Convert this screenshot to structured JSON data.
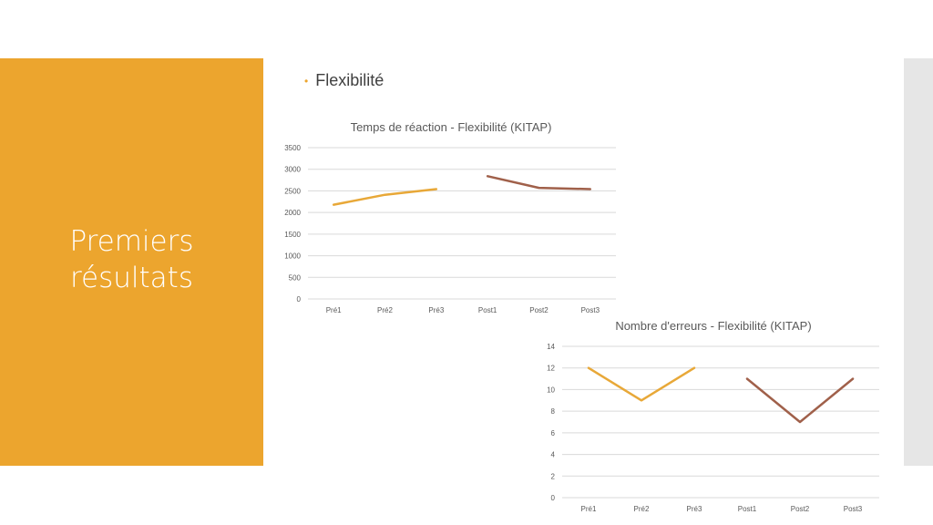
{
  "slide": {
    "title_lines": [
      "Premiers",
      "résultats"
    ],
    "bullet": "Flexibilité",
    "accent_color": "#eca52e"
  },
  "chart_data": [
    {
      "type": "line",
      "title": "Temps de réaction - Flexibilité (KITAP)",
      "categories": [
        "Pré1",
        "Pré2",
        "Pré3",
        "Post1",
        "Post2",
        "Post3"
      ],
      "yticks": [
        "0",
        "500",
        "1000",
        "1500",
        "2000",
        "2500",
        "3000",
        "3500"
      ],
      "ylim": [
        0,
        3500
      ],
      "grid": true,
      "series": [
        {
          "color": "#e8a838",
          "values": [
            2180,
            2410,
            2540,
            null,
            null,
            null
          ]
        },
        {
          "color": "#a0604a",
          "values": [
            null,
            null,
            null,
            2840,
            2570,
            2540
          ]
        }
      ]
    },
    {
      "type": "line",
      "title": "Nombre d'erreurs - Flexibilité (KITAP)",
      "categories": [
        "Pré1",
        "Pré2",
        "Pré3",
        "Post1",
        "Post2",
        "Post3"
      ],
      "yticks": [
        "0",
        "2",
        "4",
        "6",
        "8",
        "10",
        "12",
        "14"
      ],
      "ylim": [
        0,
        14
      ],
      "grid": true,
      "series": [
        {
          "color": "#e8a838",
          "values": [
            12,
            9,
            12,
            null,
            null,
            null
          ]
        },
        {
          "color": "#a0604a",
          "values": [
            null,
            null,
            null,
            11,
            7,
            11
          ]
        }
      ]
    }
  ]
}
